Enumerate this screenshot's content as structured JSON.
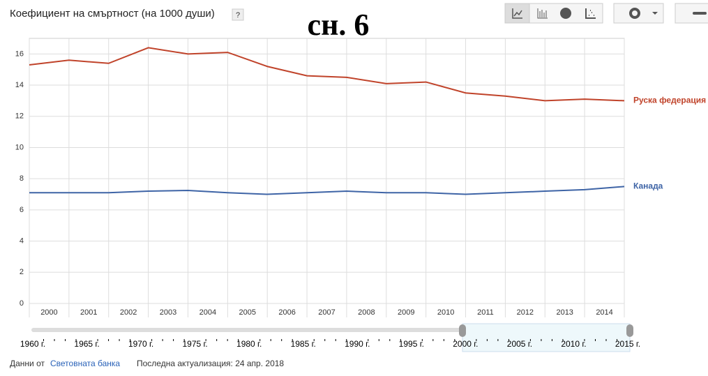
{
  "chart_data": {
    "type": "line",
    "title": "Коефициент на смъртност (на 1000 души)",
    "help": "?",
    "annotation": "сн. 6",
    "categories": [
      "2000",
      "2001",
      "2002",
      "2003",
      "2004",
      "2005",
      "2006",
      "2007",
      "2008",
      "2009",
      "2010",
      "2011",
      "2012",
      "2013",
      "2014",
      null
    ],
    "series": [
      {
        "name": "Руска федерация",
        "color": "#c0432a",
        "values": [
          15.3,
          15.6,
          15.4,
          16.4,
          16.0,
          16.1,
          15.2,
          14.6,
          14.5,
          14.1,
          14.2,
          13.5,
          13.3,
          13.0,
          13.1,
          13.0
        ]
      },
      {
        "name": "Канада",
        "color": "#3e64a6",
        "values": [
          7.1,
          7.1,
          7.1,
          7.2,
          7.25,
          7.1,
          7.0,
          7.1,
          7.2,
          7.1,
          7.1,
          7.0,
          7.1,
          7.2,
          7.3,
          7.5
        ]
      }
    ],
    "ylim": [
      0,
      17
    ],
    "yticks": [
      0,
      2,
      4,
      6,
      8,
      10,
      12,
      14,
      16
    ],
    "grid": true
  },
  "timeline": {
    "labels": [
      "1960 г.",
      "1965 г.",
      "1970 г.",
      "1975 г.",
      "1980 г.",
      "1985 г.",
      "1990 г.",
      "1995 г.",
      "2000 г.",
      "2005 г.",
      "2010 г.",
      "2015 г."
    ]
  },
  "footer": {
    "source_prefix": "Данни от",
    "source": "Световната банка",
    "updated": "Последна актуализация: 24 апр. 2018"
  }
}
